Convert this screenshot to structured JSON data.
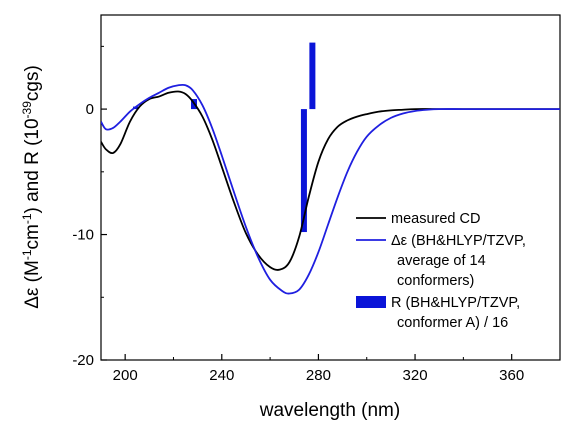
{
  "chart_data": {
    "type": "line",
    "xlabel": "wavelength (nm)",
    "ylabel_parts": {
      "prefix": "Δε (M",
      "sup1": "-1",
      "mid1": "cm",
      "sup2": "-1",
      "mid2": ") and R (10",
      "sup3": "-39",
      "suffix": "cgs)"
    },
    "xlim": [
      190,
      380
    ],
    "ylim": [
      -20,
      7.5
    ],
    "x_ticks": [
      200,
      240,
      280,
      320,
      360
    ],
    "y_ticks": [
      0,
      -10,
      -20
    ],
    "grid": false,
    "legend_position": "right",
    "colors": {
      "measured": "#000000",
      "calc": "#1f1fe0",
      "sticks": "#0a14d8"
    },
    "series": [
      {
        "name": "measured CD",
        "color": "#000000",
        "x": [
          190,
          192,
          195,
          198,
          202,
          206,
          210,
          214,
          218,
          222,
          225,
          228,
          232,
          236,
          240,
          245,
          250,
          255,
          260,
          264,
          268,
          272,
          276,
          280,
          284,
          288,
          292,
          296,
          300,
          305,
          310,
          315,
          320,
          330,
          340,
          350,
          360,
          370,
          380
        ],
        "y": [
          -2.6,
          -3.2,
          -3.5,
          -2.8,
          -1.0,
          0.2,
          0.8,
          1.0,
          1.3,
          1.4,
          1.2,
          0.6,
          -0.6,
          -2.4,
          -4.6,
          -7.4,
          -9.9,
          -11.6,
          -12.6,
          -12.8,
          -12.2,
          -10.2,
          -7.0,
          -4.2,
          -2.4,
          -1.4,
          -0.9,
          -0.6,
          -0.4,
          -0.2,
          -0.1,
          -0.05,
          0,
          0,
          0,
          0,
          0,
          0,
          0
        ]
      },
      {
        "name": "Δε (BH&HLYP/TZVP, average of 14 conformers)",
        "name_lines": [
          "Δε (BH&HLYP/TZVP,",
          "average of 14",
          "conformers)"
        ],
        "color": "#1f1fe0",
        "x": [
          190,
          192,
          195,
          198,
          202,
          206,
          210,
          214,
          218,
          222,
          225,
          228,
          232,
          236,
          240,
          245,
          250,
          255,
          260,
          265,
          268,
          272,
          276,
          280,
          284,
          288,
          292,
          296,
          300,
          305,
          310,
          315,
          320,
          325,
          330,
          340,
          350,
          360,
          370,
          380
        ],
        "y": [
          -1.0,
          -1.6,
          -1.5,
          -1.0,
          -0.2,
          0.4,
          0.9,
          1.3,
          1.7,
          1.9,
          1.9,
          1.5,
          0.3,
          -1.5,
          -3.7,
          -6.6,
          -9.4,
          -11.8,
          -13.6,
          -14.5,
          -14.7,
          -14.4,
          -13.2,
          -11.4,
          -9.2,
          -7.0,
          -5.0,
          -3.4,
          -2.2,
          -1.3,
          -0.7,
          -0.35,
          -0.15,
          -0.05,
          0,
          0,
          0,
          0,
          0,
          0
        ]
      }
    ],
    "sticks": {
      "name": "R (BH&HLYP/TZVP, conformer A) / 16",
      "name_lines": [
        "R (BH&HLYP/TZVP,",
        "conformer A) / 16"
      ],
      "color": "#0a14d8",
      "x": [
        204.5,
        228.5,
        274,
        277.5
      ],
      "y": [
        0.2,
        0.8,
        -9.8,
        5.3
      ]
    }
  }
}
